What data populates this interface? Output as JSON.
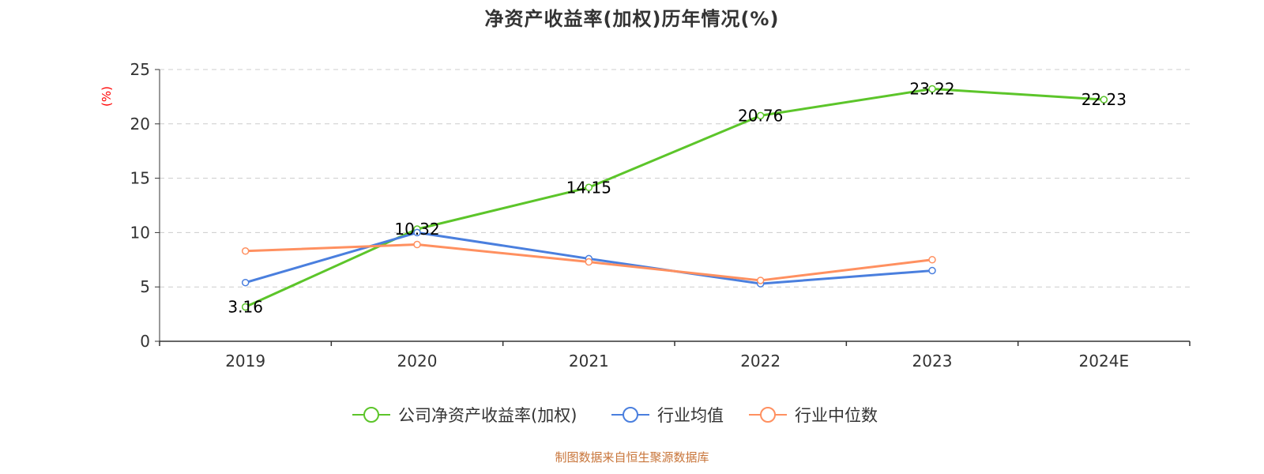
{
  "chart_data": {
    "type": "line",
    "title": "净资产收益率(加权)历年情况(%)",
    "ylabel": "(%)",
    "xlabel": "",
    "categories": [
      "2019",
      "2020",
      "2021",
      "2022",
      "2023",
      "2024E"
    ],
    "ylim": [
      0,
      25
    ],
    "yticks": [
      0,
      5,
      10,
      15,
      20,
      25
    ],
    "grid": true,
    "legend_position": "bottom",
    "series": [
      {
        "name": "公司净资产收益率(加权)",
        "color": "#5cc52a",
        "values": [
          3.16,
          10.32,
          14.15,
          20.76,
          23.22,
          22.23
        ],
        "data_labels": [
          "3.16",
          "10.32",
          "14.15",
          "20.76",
          "23.22",
          "22.23"
        ]
      },
      {
        "name": "行业均值",
        "color": "#4a7fde",
        "values": [
          5.4,
          10.0,
          7.6,
          5.3,
          6.5,
          null
        ]
      },
      {
        "name": "行业中位数",
        "color": "#ff9060",
        "values": [
          8.3,
          8.9,
          7.3,
          5.6,
          7.5,
          null
        ]
      }
    ]
  },
  "source_note": "制图数据来自恒生聚源数据库"
}
